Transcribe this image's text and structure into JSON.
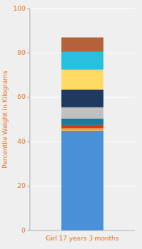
{
  "chart_data": {
    "type": "bar",
    "stacked": true,
    "grid": true,
    "categories": [
      "Girl 17 years 3 months"
    ],
    "ylabel": "Percentile Weight in Kilograms",
    "series": [
      {
        "color": "#4A90D9",
        "values": [
          45.0
        ]
      },
      {
        "color": "#F5A623",
        "values": [
          1.0
        ]
      },
      {
        "color": "#D0400A",
        "values": [
          1.5
        ]
      },
      {
        "color": "#1A7A9A",
        "values": [
          3.0
        ]
      },
      {
        "color": "#C0C0C0",
        "values": [
          5.0
        ]
      },
      {
        "color": "#1E3A5F",
        "values": [
          8.0
        ]
      },
      {
        "color": "#FFD966",
        "values": [
          9.0
        ]
      },
      {
        "color": "#29C0E0",
        "values": [
          8.0
        ]
      },
      {
        "color": "#B5613A",
        "values": [
          6.5
        ]
      }
    ],
    "ylim": [
      0,
      100
    ],
    "yticks": [
      0,
      20,
      40,
      60,
      80,
      100
    ]
  }
}
